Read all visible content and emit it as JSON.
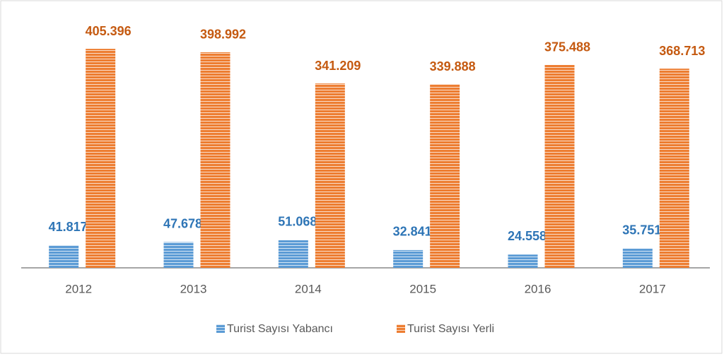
{
  "chart_data": {
    "type": "bar",
    "categories": [
      "2012",
      "2013",
      "2014",
      "2015",
      "2016",
      "2017"
    ],
    "series": [
      {
        "name": "Turist Sayısı Yabancı",
        "color": "#5b9bd5",
        "label_color": "#2e75b6",
        "values": [
          41817,
          47678,
          51068,
          32841,
          24558,
          35751
        ],
        "value_labels": [
          "41.817",
          "47.678",
          "51.068",
          "32.841",
          "24.558",
          "35.751"
        ]
      },
      {
        "name": "Turist Sayısı Yerli",
        "color": "#ed7d31",
        "label_color": "#c55a11",
        "values": [
          405396,
          398992,
          341209,
          339888,
          375488,
          368713
        ],
        "value_labels": [
          "405.396",
          "398.992",
          "341.209",
          "339.888",
          "375.488",
          "368.713"
        ]
      }
    ],
    "ylim": [
      0,
      450000
    ],
    "legend": "bottom"
  }
}
